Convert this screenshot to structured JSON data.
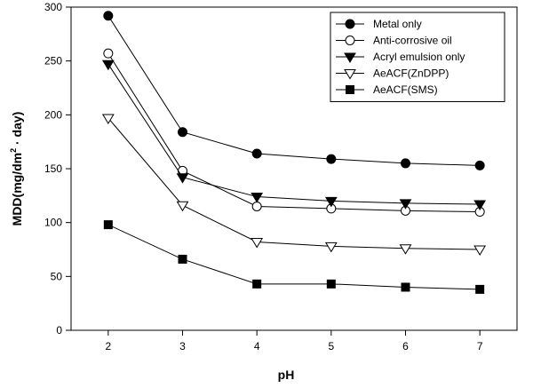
{
  "chart_data": {
    "type": "line",
    "title": "",
    "xlabel": "pH",
    "ylabel": "MDD(mg/dm² · day)",
    "ylabel_parts": {
      "pre": "MDD(mg/dm",
      "sup": "2",
      "post": " · day)"
    },
    "x": [
      2,
      3,
      4,
      5,
      6,
      7
    ],
    "xlim": [
      1.5,
      7.5
    ],
    "ylim": [
      0,
      300
    ],
    "x_ticks": [
      "2",
      "3",
      "4",
      "5",
      "6",
      "7"
    ],
    "y_ticks": [
      "0",
      "50",
      "100",
      "150",
      "200",
      "250",
      "300"
    ],
    "grid": false,
    "legend_position": "top-right",
    "series": [
      {
        "name": "Metal only",
        "marker": "circle-filled",
        "values": [
          292,
          184,
          164,
          159,
          155,
          153
        ]
      },
      {
        "name": "Anti-corrosive oil",
        "marker": "circle-open",
        "values": [
          257,
          148,
          115,
          113,
          111,
          110
        ]
      },
      {
        "name": "Acryl emulsion only",
        "marker": "triangle-down-filled",
        "values": [
          247,
          142,
          124,
          120,
          118,
          117
        ]
      },
      {
        "name": "AeACF(ZnDPP)",
        "marker": "triangle-down-open",
        "values": [
          197,
          116,
          82,
          78,
          76,
          75
        ]
      },
      {
        "name": "AeACF(SMS)",
        "marker": "square-filled",
        "values": [
          98,
          66,
          43,
          43,
          40,
          38
        ]
      }
    ]
  }
}
